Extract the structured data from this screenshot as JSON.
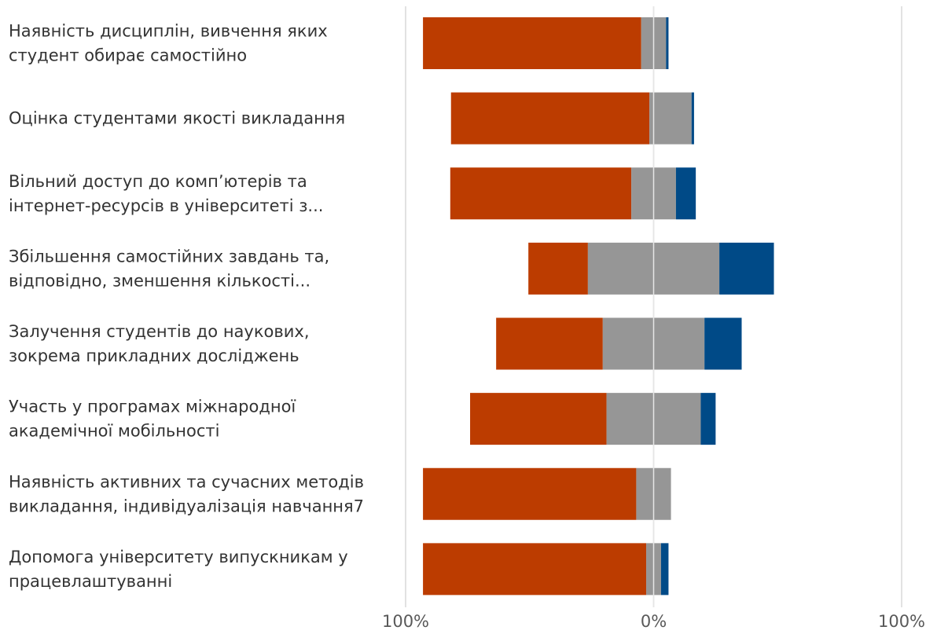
{
  "chart_data": {
    "type": "bar",
    "orientation": "horizontal",
    "stacked": "diverging",
    "categories": [
      [
        "Наявність дисциплін, вивчення яких",
        "студент обирає самостійно"
      ],
      [
        "Оцінка студентами якості викладання"
      ],
      [
        "Вільний доступ до комп’ютерів та",
        "інтернет-ресурсів в університеті з..."
      ],
      [
        "Збільшення самостійних завдань та,",
        "відповідно, зменшення кількості..."
      ],
      [
        "Залучення студентів до наукових,",
        "зокрема прикладних досліджень"
      ],
      [
        "Участь у програмах міжнародної",
        "академічної мобільності"
      ],
      [
        "Наявність активних та сучасних методів",
        "викладання, індивідуалізація навчання7"
      ],
      [
        "Допомога університету випускникам у",
        "працевлаштуванні"
      ]
    ],
    "series": [
      {
        "color": "#BC3C00",
        "values": [
          88,
          80,
          73,
          24,
          43,
          55,
          86,
          90
        ]
      },
      {
        "color": "#969696",
        "values": [
          10,
          17,
          18,
          53,
          41,
          38,
          14,
          6
        ]
      },
      {
        "color": "#004A87",
        "values": [
          1,
          1,
          8,
          22,
          15,
          6,
          0,
          3
        ]
      }
    ],
    "neutral_series_index": 1,
    "neutral_split_at_zero": [
      0.5,
      0.1,
      0.5,
      0.5,
      0.5,
      0.5,
      0.5,
      0.5
    ],
    "xlim": [
      -100,
      100
    ],
    "x_tick_labels": [
      "100%",
      "0%",
      "100%"
    ],
    "grid": true,
    "legend": "none"
  }
}
